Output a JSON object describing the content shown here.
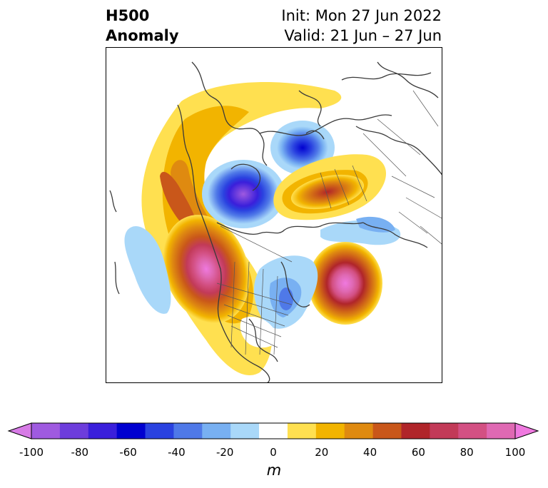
{
  "title": {
    "left_line1": "H500",
    "left_line2": "Anomaly",
    "right_line1": "Init: Mon 27 Jun 2022",
    "right_line2": "Valid: 21 Jun – 27 Jun"
  },
  "colorbar": {
    "unit": "m",
    "ticks": [
      "-100",
      "-80",
      "-60",
      "-40",
      "-20",
      "0",
      "20",
      "40",
      "60",
      "80",
      "100"
    ],
    "colors": [
      "#d77be6",
      "#9f5ae0",
      "#6d3ddc",
      "#3a1fdb",
      "#0000d0",
      "#2a42e0",
      "#4f79e8",
      "#78b0f2",
      "#a9d8f9",
      "#ffffff",
      "#ffe050",
      "#f2b400",
      "#df8a10",
      "#c9571a",
      "#b0252a",
      "#c23a58",
      "#d35083",
      "#df69b3",
      "#ef79df"
    ]
  },
  "map": {
    "projection": "polar-stereographic",
    "features": [
      "coastlines",
      "country-borders",
      "state-borders"
    ]
  }
}
